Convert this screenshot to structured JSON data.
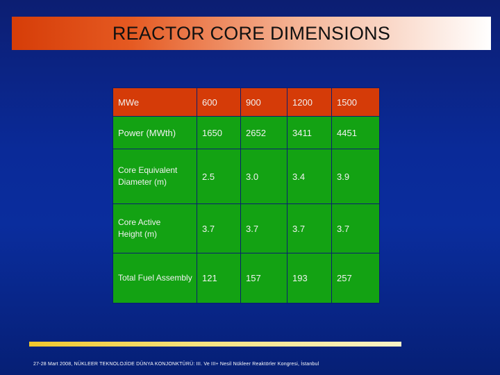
{
  "title": "REACTOR CORE DIMENSIONS",
  "table": {
    "header": {
      "label": "MWe",
      "values": [
        "600",
        "900",
        "1200",
        "1500"
      ]
    },
    "rows": [
      {
        "label": "Power (MWth)",
        "values": [
          "1650",
          "2652",
          "3411",
          "4451"
        ]
      },
      {
        "label_lines": [
          "Core Equivalent",
          "Diameter (m)"
        ],
        "values": [
          "2.5",
          "3.0",
          "3.4",
          "3.9"
        ]
      },
      {
        "label_lines": [
          "Core Active",
          "Height (m)"
        ],
        "values": [
          "3.7",
          "3.7",
          "3.7",
          "3.7"
        ]
      },
      {
        "label": "Total Fuel Assembly",
        "values": [
          "121",
          "157",
          "193",
          "257"
        ]
      }
    ]
  },
  "footer": "27-28 Mart 2008, NÜKLEER TEKNOLOJİDE DÜNYA KONJONKTÜRÜ: III. Ve III+ Nesil Nükleer Reaktörler Kongresi, İstanbul",
  "colors": {
    "header_row": "#d53b08",
    "body_rows": "#13a213",
    "background": "#0a2a98"
  }
}
